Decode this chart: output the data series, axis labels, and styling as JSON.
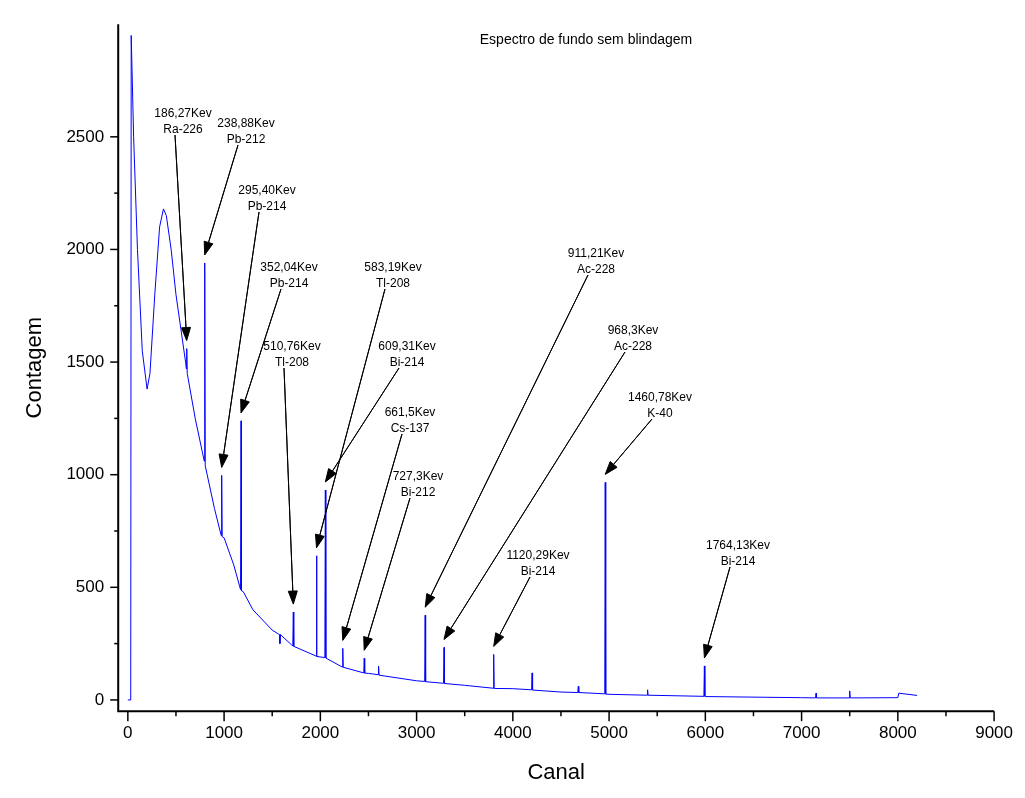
{
  "chart_data": {
    "type": "line",
    "title": "Espectro de fundo sem blindagem",
    "xlabel": "Canal",
    "ylabel": "Contagem",
    "xlim": [
      -100,
      9000
    ],
    "xticks": [
      0,
      1000,
      2000,
      3000,
      4000,
      5000,
      6000,
      7000,
      8000,
      9000
    ],
    "ylim": [
      -50,
      3000
    ],
    "yticks": [
      0,
      500,
      1000,
      1500,
      2000,
      2500
    ],
    "grid": false,
    "legend": false,
    "marker": "none",
    "line_style": "solid",
    "series": [
      {
        "color": "#0000ff",
        "x": [
          0,
          30,
          35,
          60,
          100,
          150,
          200,
          230,
          280,
          330,
          370,
          400,
          450,
          500,
          550,
          600,
          607,
          612,
          617,
          700,
          794,
          799,
          804,
          900,
          970,
          975,
          980,
          1000,
          1100,
          1171,
          1176,
          1181,
          1200,
          1300,
          1500,
          1575,
          1580,
          1585,
          1700,
          1714,
          1719,
          1724,
          1955,
          1960,
          1965,
          2047,
          2052,
          2057,
          2228,
          2233,
          2238,
          2451,
          2456,
          2461,
          2500,
          2600,
          2605,
          2610,
          3000,
          3084,
          3089,
          3094,
          3280,
          3285,
          3290,
          3500,
          3796,
          3801,
          3806,
          4000,
          4195,
          4200,
          4205,
          4500,
          4675,
          4680,
          4685,
          4955,
          4960,
          4965,
          5000,
          5395,
          5400,
          5405,
          5985,
          5990,
          5995,
          6000,
          7000,
          7145,
          7150,
          7155,
          7495,
          7500,
          7505,
          8000,
          8010,
          8200
        ],
        "values": [
          0,
          0,
          2950,
          2500,
          2000,
          1550,
          1380,
          1450,
          1800,
          2100,
          2180,
          2150,
          2000,
          1800,
          1650,
          1500,
          1470,
          1560,
          1450,
          1250,
          1060,
          1940,
          1040,
          850,
          730,
          997,
          725,
          720,
          600,
          490,
          1239,
          485,
          480,
          400,
          310,
          290,
          250,
          290,
          245,
          240,
          390,
          238,
          195,
          640,
          193,
          188,
          932,
          186,
          146,
          229,
          145,
          120,
          185,
          119,
          118,
          112,
          150,
          110,
          85,
          82,
          376,
          81,
          74,
          233,
          73,
          65,
          52,
          202,
          51,
          50,
          45,
          120,
          44,
          35,
          33,
          60,
          33,
          27,
          966,
          26,
          25,
          21,
          45,
          21,
          16,
          151,
          16,
          15,
          10,
          9,
          30,
          9,
          9,
          40,
          9,
          10,
          30,
          20
        ]
      }
    ],
    "annotations": [
      "186,27Kev\nRa-226",
      "238,88Kev\nPb-212",
      "295,40Kev\nPb-214",
      "352,04Kev\nPb-214",
      "510,76Kev\nTl-208",
      "583,19Kev\nTl-208",
      "609,31Kev\nBi-214",
      "661,5Kev\nCs-137",
      "727,3Kev\nBi-212",
      "911,21Kev\nAc-228",
      "968,3Kev\nAc-228",
      "1120,29Kev\nBi-214",
      "1460,78Kev\nK-40",
      "1764,13Kev\nBi-214"
    ]
  }
}
